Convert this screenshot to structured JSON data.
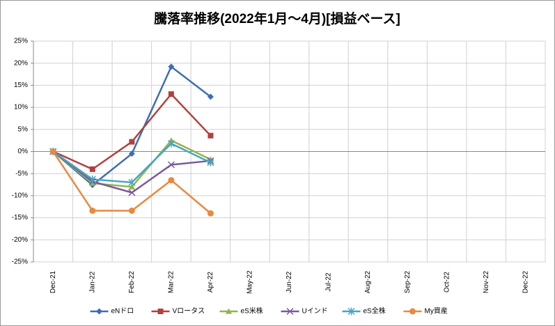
{
  "chart_data": {
    "type": "line",
    "title": "騰落率推移(2022年1月～4月)[損益ベース]",
    "categories": [
      "Dec-21",
      "Jan-22",
      "Feb-22",
      "Mar-22",
      "Apr-22",
      "May-22",
      "Jun-22",
      "Jul-22",
      "Aug-22",
      "Sep-22",
      "Oct-22",
      "Nov-22",
      "Dec-22"
    ],
    "series": [
      {
        "name": "eNドロ",
        "color": "#3d6eb4",
        "marker": "diamond",
        "values": [
          0,
          -7.6,
          -0.5,
          19.2,
          12.4,
          null,
          null,
          null,
          null,
          null,
          null,
          null,
          null
        ]
      },
      {
        "name": "Vロータス",
        "color": "#b0413e",
        "marker": "square",
        "values": [
          0,
          -4.0,
          2.2,
          13.0,
          3.6,
          null,
          null,
          null,
          null,
          null,
          null,
          null,
          null
        ]
      },
      {
        "name": "eS米株",
        "color": "#92b44e",
        "marker": "triangle",
        "values": [
          0,
          -7.2,
          -8.0,
          2.5,
          -1.8,
          null,
          null,
          null,
          null,
          null,
          null,
          null,
          null
        ]
      },
      {
        "name": "Uインド",
        "color": "#7a5a9c",
        "marker": "x",
        "values": [
          0,
          -6.8,
          -9.3,
          -3.0,
          -2.1,
          null,
          null,
          null,
          null,
          null,
          null,
          null,
          null
        ]
      },
      {
        "name": "eS全株",
        "color": "#45a6c0",
        "marker": "star",
        "values": [
          0,
          -6.3,
          -7.0,
          1.8,
          -2.5,
          null,
          null,
          null,
          null,
          null,
          null,
          null,
          null
        ]
      },
      {
        "name": "My資産",
        "color": "#e9893e",
        "marker": "circle",
        "values": [
          0,
          -13.4,
          -13.4,
          -6.5,
          -14.0,
          null,
          null,
          null,
          null,
          null,
          null,
          null,
          null
        ]
      }
    ],
    "ylim": [
      -25,
      25
    ],
    "yticks": [
      {
        "value": -25,
        "label": "-25%"
      },
      {
        "value": -20,
        "label": "-20%"
      },
      {
        "value": -15,
        "label": "-15%"
      },
      {
        "value": -10,
        "label": "-10%"
      },
      {
        "value": -5,
        "label": "-5%"
      },
      {
        "value": 0,
        "label": "0%"
      },
      {
        "value": 5,
        "label": "5%"
      },
      {
        "value": 10,
        "label": "10%"
      },
      {
        "value": 15,
        "label": "15%"
      },
      {
        "value": 20,
        "label": "20%"
      },
      {
        "value": 25,
        "label": "25%"
      }
    ],
    "grid": true,
    "legend": "bottom"
  }
}
